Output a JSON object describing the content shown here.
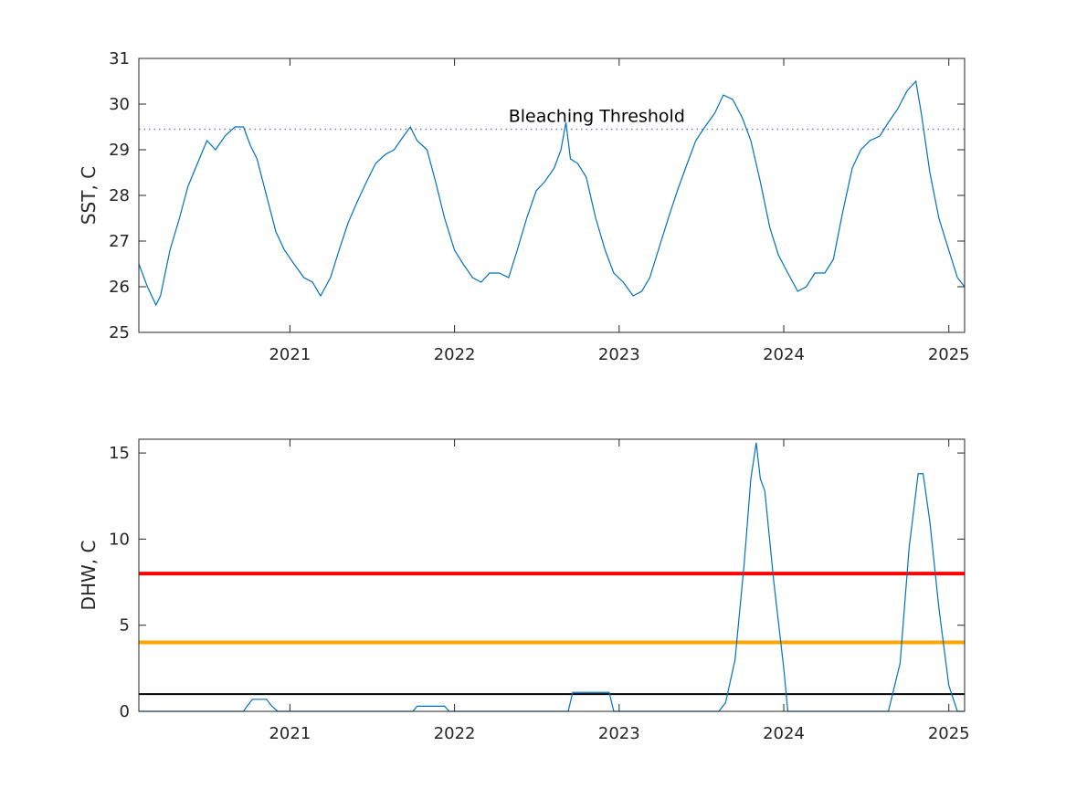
{
  "colors": {
    "series": "#0072bd",
    "threshold_dotted": "#7e7ec8",
    "alert_red": "#ff0000",
    "alert_orange": "#ffa500",
    "alert_black": "#000000",
    "axes": "#262626",
    "background": "#ffffff"
  },
  "chart_data": [
    {
      "type": "line",
      "id": "sst",
      "title": "",
      "xlabel": "",
      "ylabel": "SST, C",
      "xlim": [
        "2020-02-01",
        "2025-02-05"
      ],
      "ylim": [
        25,
        31
      ],
      "yticks": [
        25,
        26,
        27,
        28,
        29,
        30,
        31
      ],
      "xticks": [
        "2021-01-01",
        "2022-01-01",
        "2023-01-01",
        "2024-01-01",
        "2025-01-01"
      ],
      "xtick_labels": [
        "2021",
        "2022",
        "2023",
        "2024",
        "2025"
      ],
      "grid": false,
      "reference_lines": [
        {
          "y": 29.45,
          "style": "dotted",
          "color": "#7e7ec8",
          "label": "Bleaching Threshold",
          "label_x": "2022-11-01"
        }
      ],
      "series": [
        {
          "color": "#0072bd",
          "x": [
            "2020-02-01",
            "2020-02-20",
            "2020-03-10",
            "2020-03-20",
            "2020-04-10",
            "2020-05-01",
            "2020-05-20",
            "2020-06-10",
            "2020-07-01",
            "2020-07-20",
            "2020-08-10",
            "2020-09-01",
            "2020-09-20",
            "2020-10-05",
            "2020-10-20",
            "2020-11-10",
            "2020-12-01",
            "2020-12-20",
            "2021-01-10",
            "2021-02-01",
            "2021-02-20",
            "2021-03-10",
            "2021-04-01",
            "2021-04-20",
            "2021-05-10",
            "2021-06-01",
            "2021-06-20",
            "2021-07-10",
            "2021-08-01",
            "2021-08-20",
            "2021-09-10",
            "2021-09-25",
            "2021-10-10",
            "2021-11-01",
            "2021-11-20",
            "2021-12-10",
            "2022-01-01",
            "2022-01-20",
            "2022-02-10",
            "2022-03-01",
            "2022-03-20",
            "2022-04-10",
            "2022-05-01",
            "2022-05-20",
            "2022-06-10",
            "2022-07-01",
            "2022-07-20",
            "2022-08-10",
            "2022-08-25",
            "2022-09-05",
            "2022-09-15",
            "2022-10-01",
            "2022-10-20",
            "2022-11-10",
            "2022-12-01",
            "2022-12-20",
            "2023-01-10",
            "2023-02-01",
            "2023-02-20",
            "2023-03-10",
            "2023-04-01",
            "2023-04-20",
            "2023-05-10",
            "2023-06-01",
            "2023-06-20",
            "2023-07-10",
            "2023-08-01",
            "2023-08-20",
            "2023-09-10",
            "2023-10-01",
            "2023-10-20",
            "2023-11-10",
            "2023-12-01",
            "2023-12-20",
            "2024-01-10",
            "2024-02-01",
            "2024-02-20",
            "2024-03-10",
            "2024-04-01",
            "2024-04-20",
            "2024-05-10",
            "2024-06-01",
            "2024-06-20",
            "2024-07-10",
            "2024-08-01",
            "2024-08-20",
            "2024-09-10",
            "2024-10-01",
            "2024-10-20",
            "2024-11-01",
            "2024-11-20",
            "2024-12-10",
            "2025-01-01",
            "2025-01-20",
            "2025-02-05"
          ],
          "y": [
            26.5,
            26.0,
            25.6,
            25.8,
            26.8,
            27.5,
            28.2,
            28.7,
            29.2,
            29.0,
            29.3,
            29.5,
            29.5,
            29.1,
            28.8,
            28.0,
            27.2,
            26.8,
            26.5,
            26.2,
            26.1,
            25.8,
            26.2,
            26.8,
            27.4,
            27.9,
            28.3,
            28.7,
            28.9,
            29.0,
            29.3,
            29.5,
            29.2,
            29.0,
            28.3,
            27.5,
            26.8,
            26.5,
            26.2,
            26.1,
            26.3,
            26.3,
            26.2,
            26.8,
            27.5,
            28.1,
            28.3,
            28.6,
            29.0,
            29.6,
            28.8,
            28.7,
            28.4,
            27.5,
            26.8,
            26.3,
            26.1,
            25.8,
            25.9,
            26.2,
            26.9,
            27.5,
            28.1,
            28.7,
            29.2,
            29.5,
            29.8,
            30.2,
            30.1,
            29.7,
            29.2,
            28.3,
            27.3,
            26.7,
            26.3,
            25.9,
            26.0,
            26.3,
            26.3,
            26.6,
            27.6,
            28.6,
            29.0,
            29.2,
            29.3,
            29.6,
            29.9,
            30.3,
            30.5,
            29.8,
            28.5,
            27.5,
            26.8,
            26.2,
            26.0
          ]
        }
      ]
    },
    {
      "type": "line",
      "id": "dhw",
      "title": "",
      "xlabel": "",
      "ylabel": "DHW, C",
      "xlim": [
        "2020-02-01",
        "2025-02-05"
      ],
      "ylim": [
        0,
        15.8
      ],
      "yticks": [
        0,
        5,
        10,
        15
      ],
      "xticks": [
        "2021-01-01",
        "2022-01-01",
        "2023-01-01",
        "2024-01-01",
        "2025-01-01"
      ],
      "xtick_labels": [
        "2021",
        "2022",
        "2023",
        "2024",
        "2025"
      ],
      "grid": false,
      "reference_lines": [
        {
          "y": 8,
          "style": "solid",
          "color": "#ff0000",
          "label": ""
        },
        {
          "y": 4,
          "style": "solid",
          "color": "#ffa500",
          "label": ""
        },
        {
          "y": 1,
          "style": "solid",
          "color": "#000000",
          "label": ""
        }
      ],
      "series": [
        {
          "color": "#0072bd",
          "x": [
            "2020-02-01",
            "2020-09-20",
            "2020-09-28",
            "2020-10-10",
            "2020-11-10",
            "2020-11-22",
            "2020-12-05",
            "2021-10-01",
            "2021-10-10",
            "2021-12-10",
            "2021-12-20",
            "2022-09-10",
            "2022-09-20",
            "2022-12-10",
            "2022-12-20",
            "2023-08-10",
            "2023-08-25",
            "2023-09-15",
            "2023-10-05",
            "2023-10-20",
            "2023-11-01",
            "2023-11-10",
            "2023-11-20",
            "2023-12-10",
            "2024-01-01",
            "2024-01-10",
            "2024-08-20",
            "2024-09-15",
            "2024-10-05",
            "2024-10-25",
            "2024-11-05",
            "2024-11-20",
            "2024-12-10",
            "2025-01-01",
            "2025-01-20",
            "2025-02-05"
          ],
          "y": [
            0,
            0,
            0.3,
            0.7,
            0.7,
            0.3,
            0,
            0,
            0.3,
            0.3,
            0,
            0,
            1.1,
            1.1,
            0,
            0,
            0.5,
            3.0,
            8.5,
            13.5,
            15.6,
            13.5,
            12.8,
            7.5,
            2.5,
            0,
            0,
            2.8,
            9.5,
            13.8,
            13.8,
            11.0,
            6.0,
            1.5,
            0,
            0
          ]
        }
      ]
    }
  ]
}
